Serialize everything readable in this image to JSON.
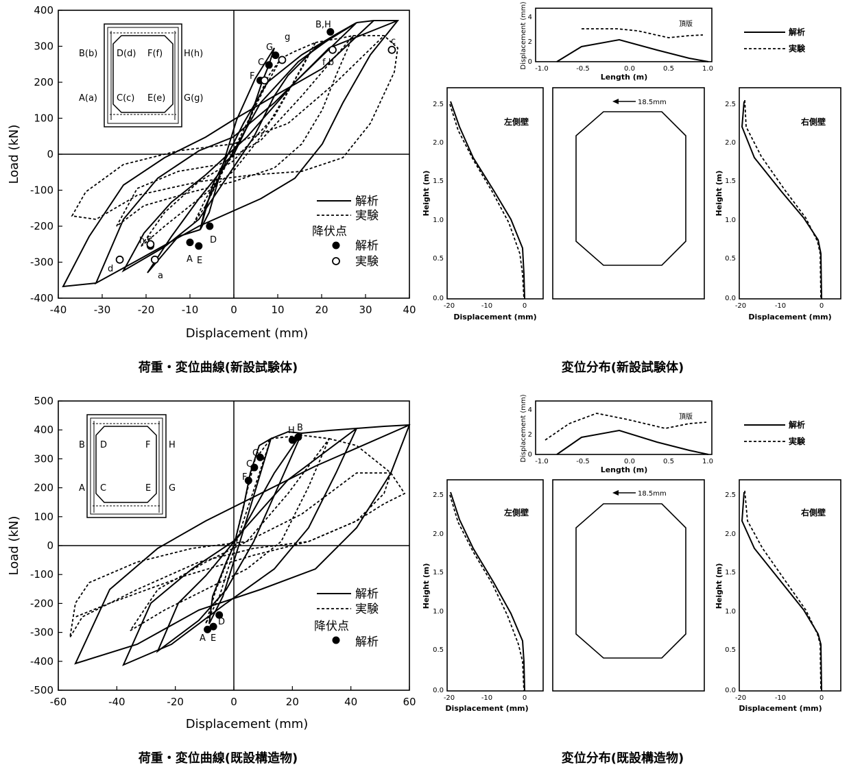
{
  "charts": {
    "ld1": {
      "type": "line",
      "xlabel": "Displacement (mm)",
      "ylabel": "Load (kN)",
      "xlim": [
        -40,
        40
      ],
      "ylim": [
        -400,
        400
      ],
      "xticks": [
        "-40",
        "-30",
        "-20",
        "-10",
        "0",
        "10",
        "20",
        "30",
        "40"
      ],
      "yticks": [
        "400",
        "300",
        "200",
        "100",
        "0",
        "-100",
        "-200",
        "-300",
        "-400"
      ],
      "caption": "荷重・変位曲線(新設試験体)",
      "legend": {
        "sim": "解析",
        "exp": "実験",
        "yield": "降伏点",
        "yield_sim": "解析",
        "yield_exp": "実験"
      },
      "inset_labels": [
        "B(b)",
        "D(d)",
        "F(f)",
        "H(h)",
        "A(a)",
        "C(c)",
        "E(e)",
        "G(g)"
      ],
      "point_labels": [
        "B,H",
        "G",
        "g",
        "C",
        "c",
        "F",
        "f b",
        "h",
        "e",
        "A",
        "E",
        "D",
        "d",
        "a"
      ],
      "yield_sim": [
        [
          22,
          340
        ],
        [
          9.5,
          275
        ],
        [
          8,
          248
        ],
        [
          6,
          205
        ],
        [
          -19,
          -255
        ],
        [
          -10,
          -245
        ],
        [
          -8,
          -255
        ],
        [
          -5.5,
          -200
        ]
      ],
      "yield_exp": [
        [
          22.5,
          290
        ],
        [
          11,
          262
        ],
        [
          36,
          290
        ],
        [
          7,
          205
        ],
        [
          -26,
          -293
        ],
        [
          -18,
          -293
        ],
        [
          -19,
          -250
        ]
      ]
    },
    "ld2": {
      "type": "line",
      "xlabel": "Displacement (mm)",
      "ylabel": "Load (kN)",
      "xlim": [
        -60,
        60
      ],
      "ylim": [
        -500,
        500
      ],
      "xticks": [
        "-60",
        "-40",
        "-20",
        "0",
        "20",
        "40",
        "60"
      ],
      "yticks": [
        "500",
        "400",
        "300",
        "200",
        "100",
        "0",
        "-100",
        "-200",
        "-300",
        "-400",
        "-500"
      ],
      "caption": "荷重・変位曲線(既設構造物)",
      "legend": {
        "sim": "解析",
        "exp": "実験",
        "yield": "降伏点",
        "yield_sim": "解析"
      },
      "inset_labels": [
        "B",
        "D",
        "F",
        "H",
        "A",
        "C",
        "E",
        "G"
      ],
      "point_labels": [
        "H",
        "B",
        "G",
        "C",
        "F",
        "A",
        "E",
        "D"
      ],
      "yield_sim": [
        [
          22,
          375
        ],
        [
          20,
          365
        ],
        [
          9,
          305
        ],
        [
          7,
          270
        ],
        [
          5,
          225
        ],
        [
          -9,
          -290
        ],
        [
          -7,
          -280
        ],
        [
          -5,
          -240
        ]
      ]
    }
  },
  "disp": {
    "d1": {
      "caption": "変位分布(新設試験体)",
      "top_plate": "頂版",
      "left_wall": "左側壁",
      "right_wall": "右側壁",
      "arrow_label": "18.5mm",
      "top_xlabel": "Length (m)",
      "top_ylabel": "Displacement (mm)",
      "side_xlabel": "Displacement (mm)",
      "side_ylabel": "Height (m)",
      "top_xticks": [
        "-1.0",
        "-0.5",
        "0.0",
        "0.5",
        "1.0"
      ],
      "top_yticks": [
        "4",
        "2",
        "0"
      ],
      "side_xticks": [
        "-20",
        "-10",
        "0"
      ],
      "side_yticks": [
        "2.5",
        "2.0",
        "1.5",
        "1.0",
        "0.5",
        "0.0"
      ],
      "legend": {
        "sim": "解析",
        "exp": "実験"
      }
    },
    "d2": {
      "caption": "変位分布(既設構造物)",
      "top_plate": "頂版",
      "left_wall": "左側壁",
      "right_wall": "右側壁",
      "arrow_label": "18.5mm",
      "top_xlabel": "Length (m)",
      "top_ylabel": "Displacement (mm)",
      "side_xlabel": "Displacement (mm)",
      "side_ylabel": "Height (m)",
      "top_xticks": [
        "-1.0",
        "-0.5",
        "0.0",
        "0.5",
        "1.0"
      ],
      "top_yticks": [
        "4",
        "2",
        "0"
      ],
      "side_xticks": [
        "-20",
        "-10",
        "0"
      ],
      "side_yticks": [
        "2.5",
        "2.0",
        "1.5",
        "1.0",
        "0.5",
        "0.0"
      ],
      "legend": {
        "sim": "解析",
        "exp": "実験"
      }
    }
  }
}
